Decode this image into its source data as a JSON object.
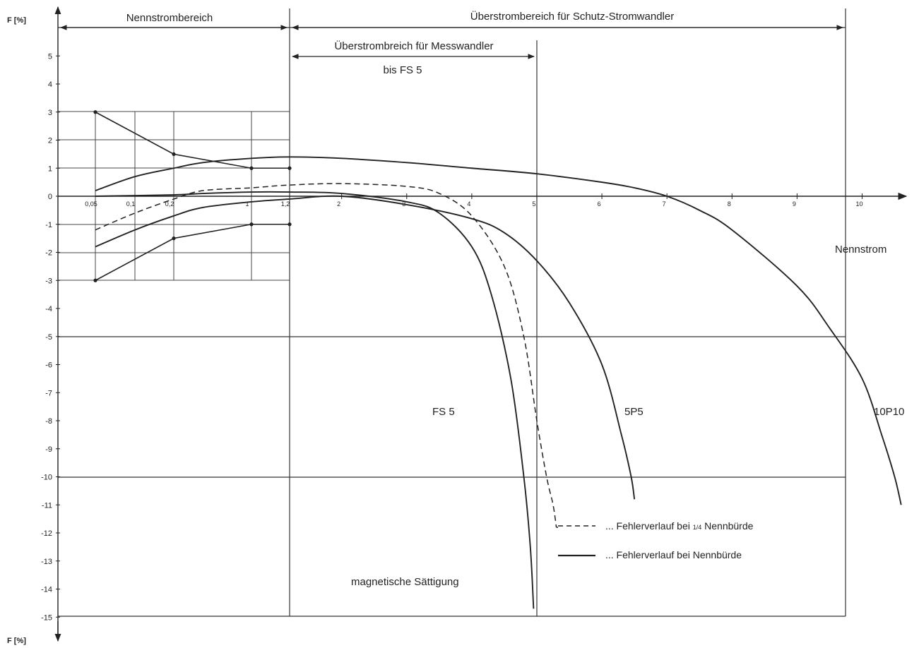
{
  "chart_data": {
    "type": "line",
    "ylabel_top": "F [%]",
    "ylabel_bottom": "F [%]",
    "xlabel": "Nennstrom",
    "ylim": [
      -15,
      5
    ],
    "xlim": [
      0.05,
      10
    ],
    "y_ticks": [
      5,
      4,
      3,
      2,
      1,
      0,
      -1,
      -2,
      -3,
      -4,
      -5,
      -6,
      -7,
      -8,
      -9,
      -10,
      -11,
      -12,
      -13,
      -14,
      -15
    ],
    "x_ticks_small": [
      {
        "x": 0.05,
        "label": "0,05"
      },
      {
        "x": 0.1,
        "label": "0,1"
      },
      {
        "x": 0.2,
        "label": "0,2"
      },
      {
        "x": 1,
        "label": "1"
      },
      {
        "x": 1.2,
        "label": "1,2"
      }
    ],
    "x_ticks": [
      2,
      3,
      4,
      5,
      6,
      7,
      8,
      9,
      10
    ],
    "ranges": {
      "nennstrom": "Nennstrombereich",
      "schutz": "Überstrombereich für Schutz-Stromwandler",
      "mess_line1": "Überstrombreich für Messwandler",
      "mess_line2": "bis FS 5"
    },
    "region_labels": {
      "fs5": "FS 5",
      "p5": "5P5",
      "p10": "10P10",
      "saturation": "magnetische Sättigung"
    },
    "legend": {
      "dashed": "... Fehlerverlauf bei ",
      "dashed_frac": "1/4",
      "dashed_tail": " Nennbürde",
      "solid": "... Fehlerverlauf bei Nennbürde"
    },
    "error_limits": {
      "upper": [
        [
          0.05,
          3.0
        ],
        [
          0.2,
          1.5
        ],
        [
          1,
          1.0
        ],
        [
          1.2,
          1.0
        ]
      ],
      "lower": [
        [
          0.05,
          -3.0
        ],
        [
          0.2,
          -1.5
        ],
        [
          1,
          -1.0
        ],
        [
          1.2,
          -1.0
        ]
      ]
    },
    "series": [
      {
        "style": "dashed",
        "points": [
          [
            0.05,
            -1.2
          ],
          [
            0.1,
            -0.6
          ],
          [
            0.2,
            -0.1
          ],
          [
            0.5,
            0.2
          ],
          [
            1,
            0.3
          ],
          [
            1.2,
            0.4
          ],
          [
            2,
            0.45
          ],
          [
            3,
            0.35
          ],
          [
            3.5,
            0.1
          ],
          [
            4,
            -0.7
          ],
          [
            4.5,
            -2.5
          ],
          [
            4.8,
            -5.0
          ],
          [
            5.0,
            -8.0
          ],
          [
            5.15,
            -10.0
          ],
          [
            5.25,
            -11.0
          ],
          [
            5.3,
            -11.8
          ]
        ]
      },
      {
        "style": "solid",
        "points": [
          [
            0.05,
            0.2
          ],
          [
            0.1,
            0.7
          ],
          [
            0.2,
            1.0
          ],
          [
            0.5,
            1.2
          ],
          [
            1,
            1.35
          ],
          [
            1.2,
            1.4
          ],
          [
            2,
            1.35
          ],
          [
            3,
            1.2
          ],
          [
            4,
            1.0
          ],
          [
            5,
            0.8
          ],
          [
            6,
            0.5
          ],
          [
            6.5,
            0.3
          ],
          [
            7,
            0.0
          ],
          [
            7.5,
            -0.5
          ],
          [
            8,
            -1.2
          ],
          [
            9,
            -3.2
          ],
          [
            9.5,
            -4.7
          ],
          [
            10,
            -6.5
          ],
          [
            10.3,
            -8.5
          ],
          [
            10.5,
            -10.0
          ],
          [
            10.6,
            -11.0
          ]
        ]
      },
      {
        "style": "solid",
        "points": [
          [
            0.05,
            -1.8
          ],
          [
            0.1,
            -1.2
          ],
          [
            0.2,
            -0.7
          ],
          [
            0.5,
            -0.4
          ],
          [
            1,
            -0.2
          ],
          [
            1.2,
            -0.1
          ],
          [
            2,
            0.0
          ],
          [
            3,
            -0.3
          ],
          [
            4,
            -0.8
          ],
          [
            4.5,
            -1.3
          ],
          [
            5,
            -2.3
          ],
          [
            5.5,
            -3.8
          ],
          [
            6,
            -6.0
          ],
          [
            6.3,
            -8.5
          ],
          [
            6.45,
            -10.0
          ],
          [
            6.5,
            -10.8
          ]
        ]
      },
      {
        "style": "solid",
        "points": [
          [
            0.05,
            0.0
          ],
          [
            0.2,
            0.05
          ],
          [
            0.5,
            0.1
          ],
          [
            1,
            0.15
          ],
          [
            1.2,
            0.15
          ],
          [
            2,
            0.1
          ],
          [
            3,
            -0.2
          ],
          [
            3.5,
            -0.6
          ],
          [
            4,
            -1.8
          ],
          [
            4.3,
            -3.5
          ],
          [
            4.6,
            -6.5
          ],
          [
            4.8,
            -10.0
          ],
          [
            4.9,
            -12.5
          ],
          [
            4.95,
            -14.7
          ]
        ]
      }
    ]
  }
}
